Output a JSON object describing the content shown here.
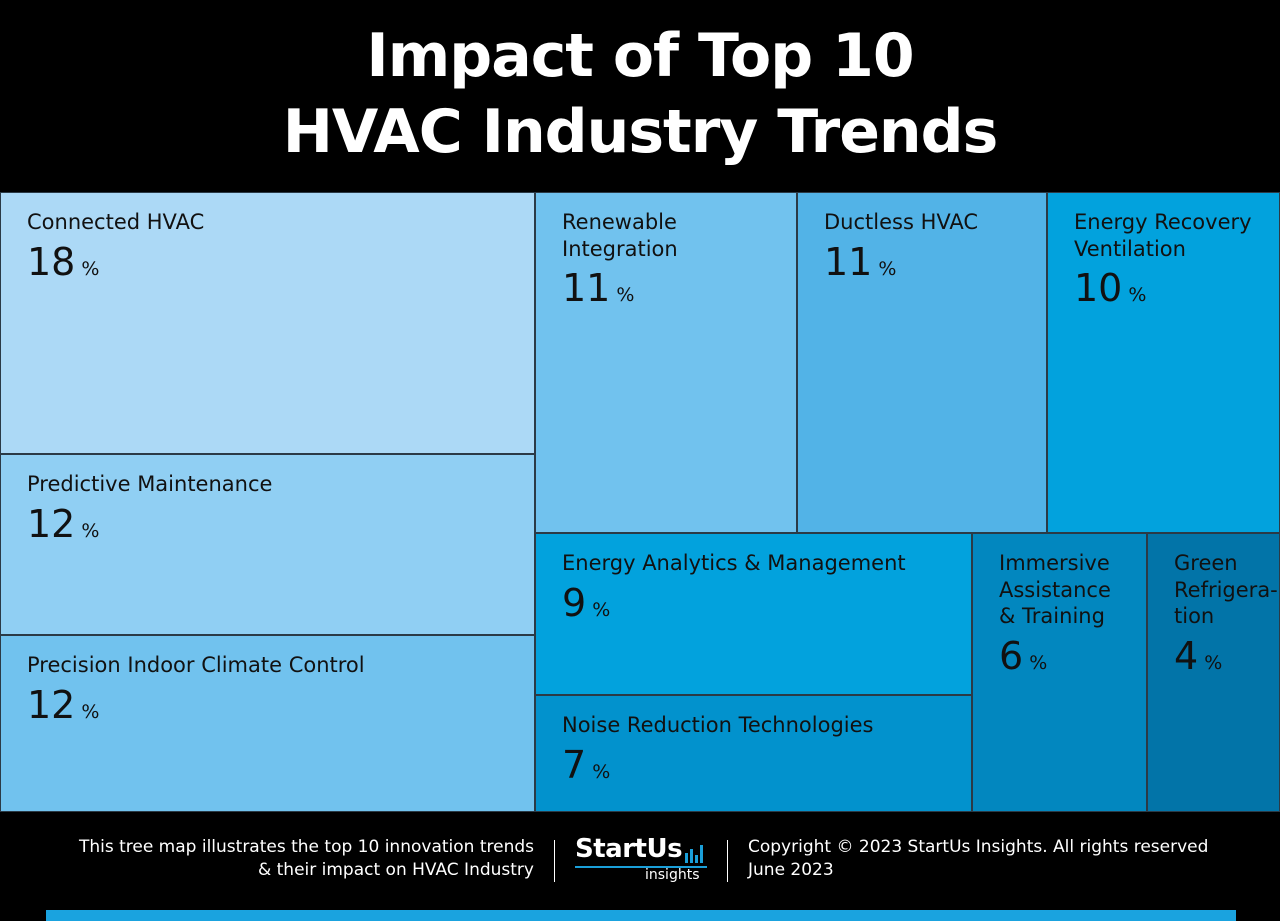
{
  "title": {
    "line1": "Impact of Top 10",
    "line2": "HVAC Industry Trends"
  },
  "colors": {
    "background": "#000000",
    "accent": "#1aa3df",
    "cell_border": "#2b3a46"
  },
  "chart_data": {
    "type": "treemap",
    "title": "Impact of Top 10 HVAC Industry Trends",
    "unit": "%",
    "items": [
      {
        "label": "Connected HVAC",
        "value": 18,
        "color": "#acd9f6"
      },
      {
        "label": "Predictive Maintenance",
        "value": 12,
        "color": "#90cff3"
      },
      {
        "label": "Precision Indoor Climate Control",
        "value": 12,
        "color": "#71c2ee"
      },
      {
        "label": "Renewable\nIntegration",
        "value": 11,
        "color": "#71c2ee"
      },
      {
        "label": "Ductless HVAC",
        "value": 11,
        "color": "#52b3e7"
      },
      {
        "label": "Energy Recovery\nVentilation",
        "value": 10,
        "color": "#02a2dd"
      },
      {
        "label": "Energy Analytics & Management",
        "value": 9,
        "color": "#02a2dd"
      },
      {
        "label": "Noise Reduction Technologies",
        "value": 7,
        "color": "#0292cd"
      },
      {
        "label": "Immersive\nAssistance\n& Training",
        "value": 6,
        "color": "#0287bf"
      },
      {
        "label": "Green\nRefrigera-\ntion",
        "value": 4,
        "color": "#0274a8"
      }
    ]
  },
  "footer": {
    "description_line1": "This tree map illustrates the top 10 innovation trends",
    "description_line2": "& their impact on HVAC Industry",
    "logo_main": "StartUs",
    "logo_sub": "insights",
    "copyright": "Copyright © 2023 StartUs Insights. All rights reserved",
    "date": "June 2023"
  }
}
